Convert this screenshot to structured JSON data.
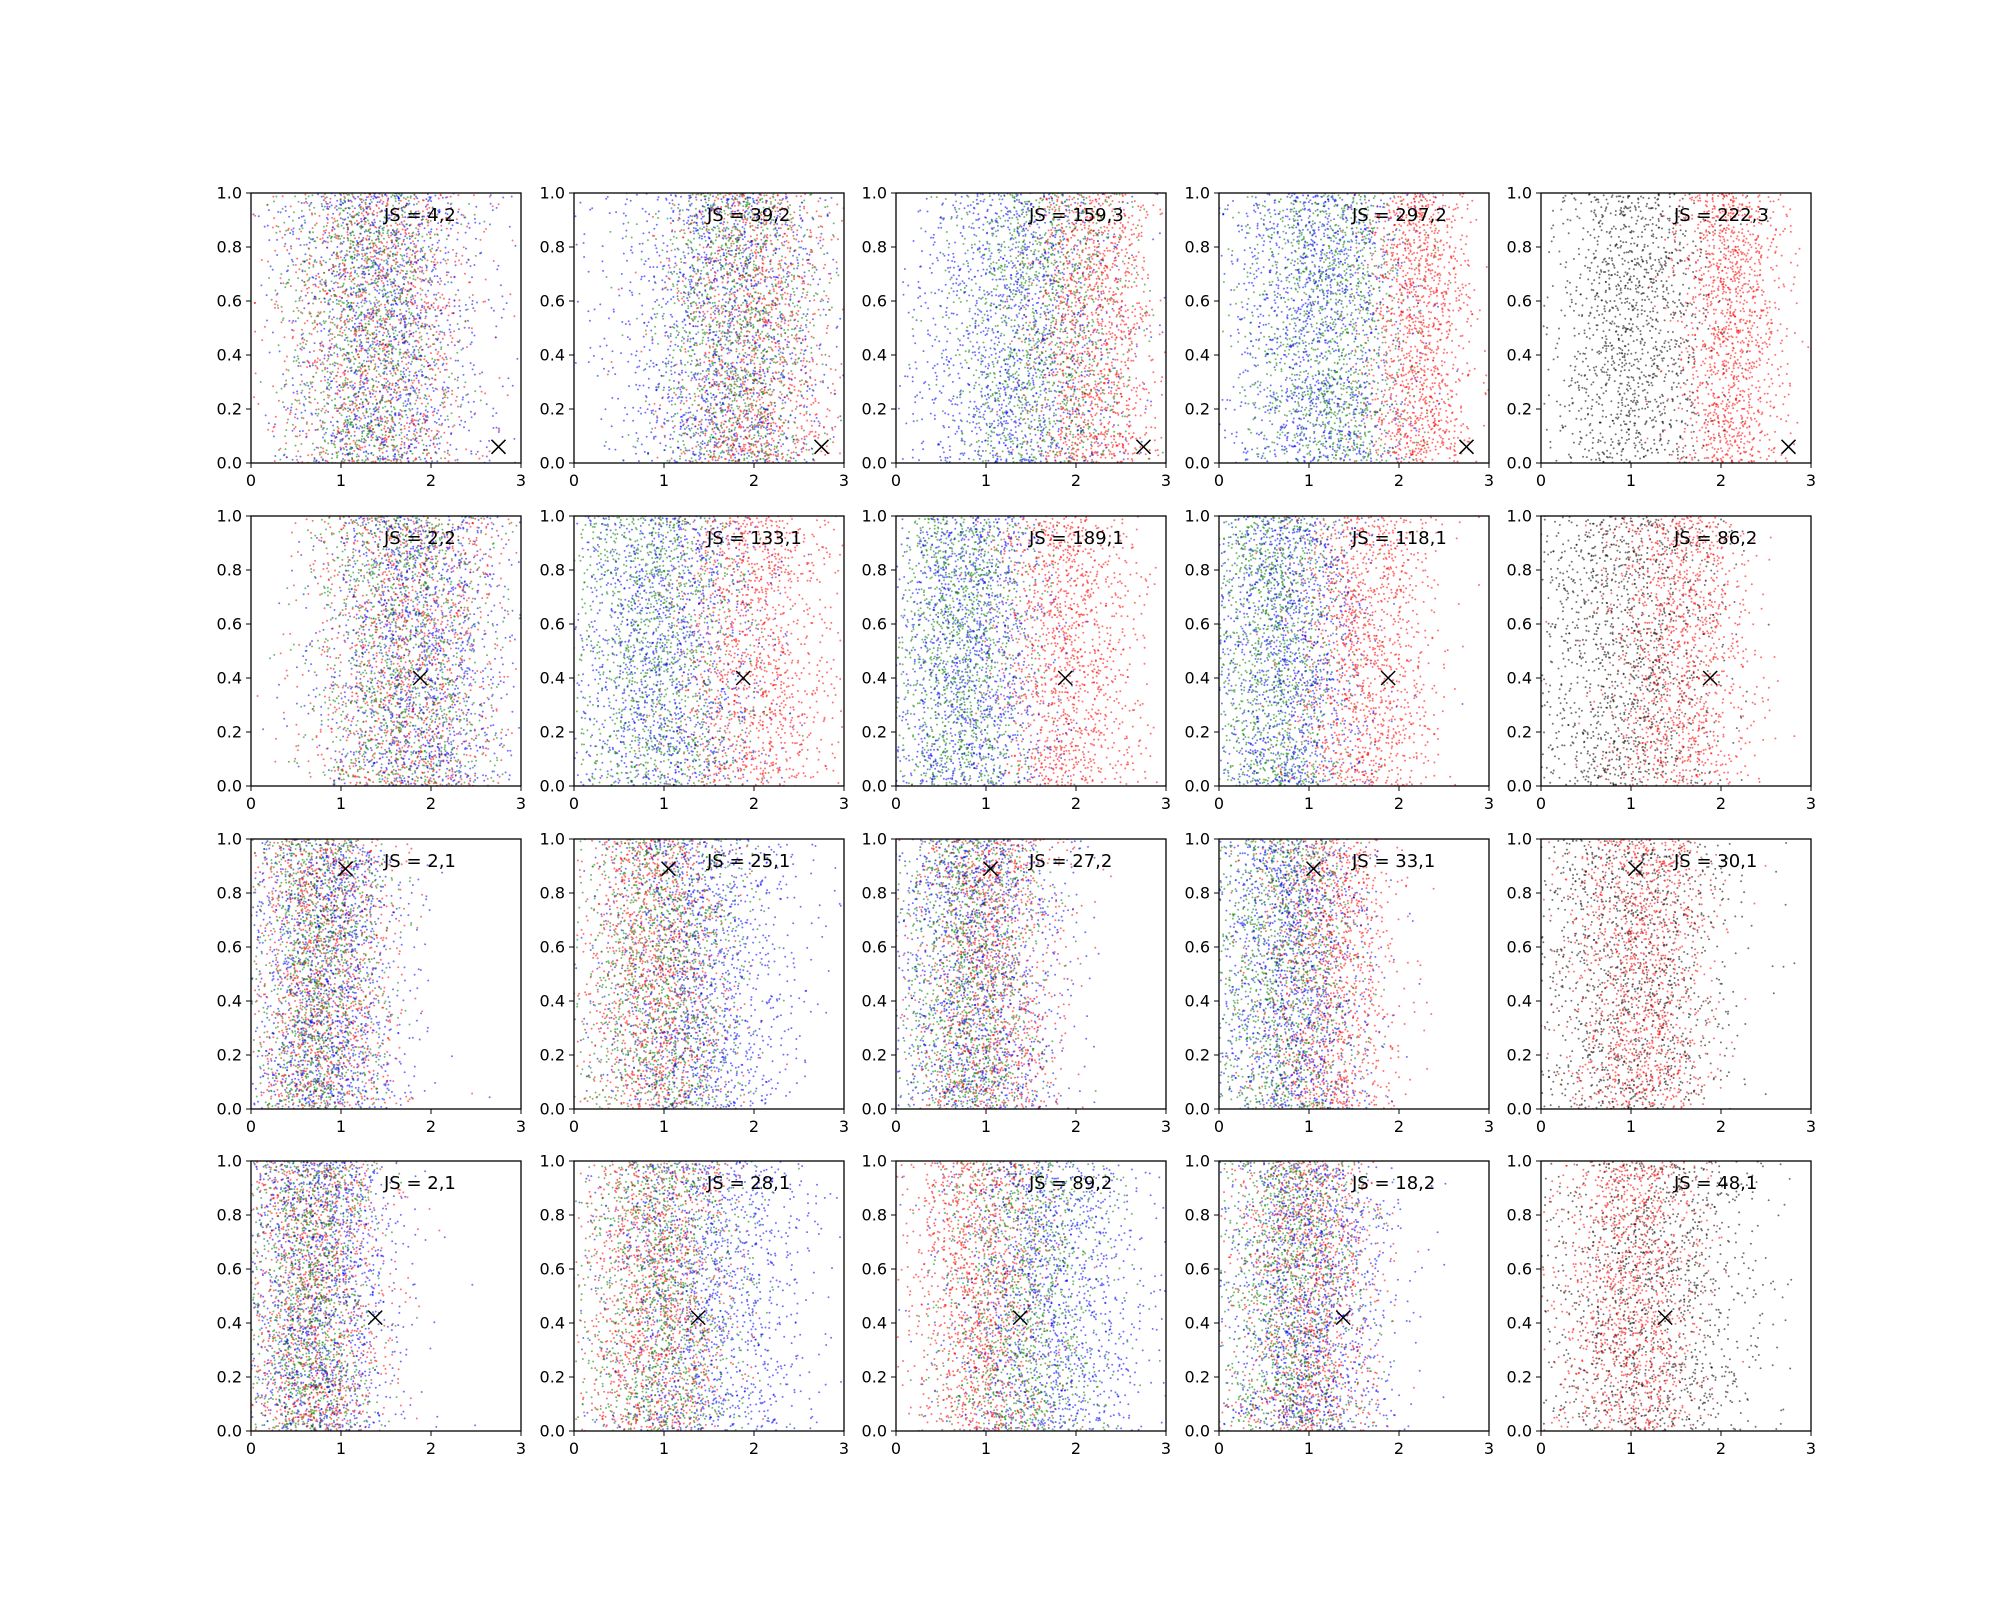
{
  "figure": {
    "background": "#ffffff",
    "rows": 4,
    "cols": 5
  },
  "axes": {
    "xlim": [
      0,
      3
    ],
    "ylim": [
      0,
      1
    ],
    "xticks": [
      0,
      1,
      2,
      3
    ],
    "xtick_labels": [
      "0",
      "1",
      "2",
      "3"
    ],
    "yticks": [
      0,
      0.2,
      0.4,
      0.6,
      0.8,
      1.0
    ],
    "ytick_labels": [
      "0.0",
      "0.2",
      "0.4",
      "0.6",
      "0.8",
      "1.0"
    ]
  },
  "colors": {
    "red": "#ff0000",
    "green": "#008000",
    "blue": "#0000ff",
    "black": "#000000"
  },
  "chart_data": {
    "type": "scatter",
    "description_free": true,
    "rows": [
      {
        "marker": {
          "x": 2.75,
          "y": 0.06
        },
        "panels": [
          {
            "annotation": "JS = 4,2",
            "clusters": [
              {
                "color": "red",
                "mean": 1.4,
                "sd": 0.55
              },
              {
                "color": "green",
                "mean": 1.3,
                "sd": 0.45
              },
              {
                "color": "blue",
                "mean": 1.5,
                "sd": 0.6
              }
            ]
          },
          {
            "annotation": "JS = 39,2",
            "clusters": [
              {
                "color": "red",
                "mean": 2.0,
                "sd": 0.45
              },
              {
                "color": "green",
                "mean": 1.8,
                "sd": 0.45
              },
              {
                "color": "blue",
                "mean": 1.6,
                "sd": 0.65
              }
            ]
          },
          {
            "annotation": "JS = 159,3",
            "clusters": [
              {
                "color": "red",
                "mean": 2.2,
                "sd": 0.35
              },
              {
                "color": "green",
                "mean": 1.6,
                "sd": 0.5
              },
              {
                "color": "blue",
                "mean": 1.3,
                "sd": 0.6
              }
            ]
          },
          {
            "annotation": "JS = 297,2",
            "clusters": [
              {
                "color": "red",
                "mean": 2.2,
                "sd": 0.3
              },
              {
                "color": "green",
                "mean": 1.2,
                "sd": 0.45
              },
              {
                "color": "blue",
                "mean": 1.1,
                "sd": 0.5
              }
            ]
          },
          {
            "annotation": "JS = 222,3",
            "clusters": [
              {
                "color": "red",
                "mean": 2.1,
                "sd": 0.3
              },
              {
                "color": "black",
                "mean": 1.0,
                "sd": 0.45
              }
            ]
          }
        ]
      },
      {
        "marker": {
          "x": 1.88,
          "y": 0.4
        },
        "panels": [
          {
            "annotation": "JS = 2,2",
            "clusters": [
              {
                "color": "red",
                "mean": 1.75,
                "sd": 0.55
              },
              {
                "color": "green",
                "mean": 1.7,
                "sd": 0.5
              },
              {
                "color": "blue",
                "mean": 1.85,
                "sd": 0.55
              }
            ]
          },
          {
            "annotation": "JS = 133,1",
            "clusters": [
              {
                "color": "red",
                "mean": 2.0,
                "sd": 0.45
              },
              {
                "color": "green",
                "mean": 0.9,
                "sd": 0.5
              },
              {
                "color": "blue",
                "mean": 1.0,
                "sd": 0.55
              }
            ]
          },
          {
            "annotation": "JS = 189,1",
            "clusters": [
              {
                "color": "red",
                "mean": 1.9,
                "sd": 0.4
              },
              {
                "color": "green",
                "mean": 0.7,
                "sd": 0.4
              },
              {
                "color": "blue",
                "mean": 0.8,
                "sd": 0.45
              }
            ]
          },
          {
            "annotation": "JS = 118,1",
            "clusters": [
              {
                "color": "red",
                "mean": 1.6,
                "sd": 0.4
              },
              {
                "color": "green",
                "mean": 0.6,
                "sd": 0.4
              },
              {
                "color": "blue",
                "mean": 0.75,
                "sd": 0.45
              }
            ]
          },
          {
            "annotation": "JS = 86,2",
            "clusters": [
              {
                "color": "red",
                "mean": 1.55,
                "sd": 0.4
              },
              {
                "color": "black",
                "mean": 0.9,
                "sd": 0.55
              }
            ]
          }
        ]
      },
      {
        "marker": {
          "x": 1.05,
          "y": 0.89
        },
        "panels": [
          {
            "annotation": "JS = 2,1",
            "clusters": [
              {
                "color": "red",
                "mean": 0.8,
                "sd": 0.4
              },
              {
                "color": "green",
                "mean": 0.75,
                "sd": 0.35
              },
              {
                "color": "blue",
                "mean": 0.85,
                "sd": 0.45
              }
            ]
          },
          {
            "annotation": "JS = 25,1",
            "clusters": [
              {
                "color": "red",
                "mean": 0.9,
                "sd": 0.4
              },
              {
                "color": "green",
                "mean": 1.0,
                "sd": 0.45
              },
              {
                "color": "blue",
                "mean": 1.4,
                "sd": 0.55
              }
            ]
          },
          {
            "annotation": "JS = 27,2",
            "clusters": [
              {
                "color": "red",
                "mean": 1.0,
                "sd": 0.4
              },
              {
                "color": "green",
                "mean": 0.8,
                "sd": 0.4
              },
              {
                "color": "blue",
                "mean": 0.9,
                "sd": 0.5
              }
            ]
          },
          {
            "annotation": "JS = 33,1",
            "clusters": [
              {
                "color": "red",
                "mean": 1.2,
                "sd": 0.4
              },
              {
                "color": "green",
                "mean": 0.7,
                "sd": 0.4
              },
              {
                "color": "blue",
                "mean": 0.8,
                "sd": 0.45
              }
            ]
          },
          {
            "annotation": "JS = 30,1",
            "clusters": [
              {
                "color": "red",
                "mean": 1.1,
                "sd": 0.4
              },
              {
                "color": "black",
                "mean": 0.9,
                "sd": 0.6
              }
            ]
          }
        ]
      },
      {
        "marker": {
          "x": 1.38,
          "y": 0.42
        },
        "panels": [
          {
            "annotation": "JS = 2,1",
            "clusters": [
              {
                "color": "red",
                "mean": 0.7,
                "sd": 0.4
              },
              {
                "color": "green",
                "mean": 0.65,
                "sd": 0.35
              },
              {
                "color": "blue",
                "mean": 0.8,
                "sd": 0.45
              }
            ]
          },
          {
            "annotation": "JS = 28,1",
            "clusters": [
              {
                "color": "red",
                "mean": 0.9,
                "sd": 0.4
              },
              {
                "color": "green",
                "mean": 1.0,
                "sd": 0.45
              },
              {
                "color": "blue",
                "mean": 1.5,
                "sd": 0.6
              }
            ]
          },
          {
            "annotation": "JS = 89,2",
            "clusters": [
              {
                "color": "red",
                "mean": 0.9,
                "sd": 0.4
              },
              {
                "color": "green",
                "mean": 1.4,
                "sd": 0.45
              },
              {
                "color": "blue",
                "mean": 1.7,
                "sd": 0.55
              }
            ]
          },
          {
            "annotation": "JS = 18,2",
            "clusters": [
              {
                "color": "red",
                "mean": 1.0,
                "sd": 0.4
              },
              {
                "color": "green",
                "mean": 0.8,
                "sd": 0.4
              },
              {
                "color": "blue",
                "mean": 1.0,
                "sd": 0.5
              }
            ]
          },
          {
            "annotation": "JS = 48,1",
            "clusters": [
              {
                "color": "red",
                "mean": 1.0,
                "sd": 0.4
              },
              {
                "color": "black",
                "mean": 1.2,
                "sd": 0.65
              }
            ]
          }
        ]
      }
    ]
  }
}
